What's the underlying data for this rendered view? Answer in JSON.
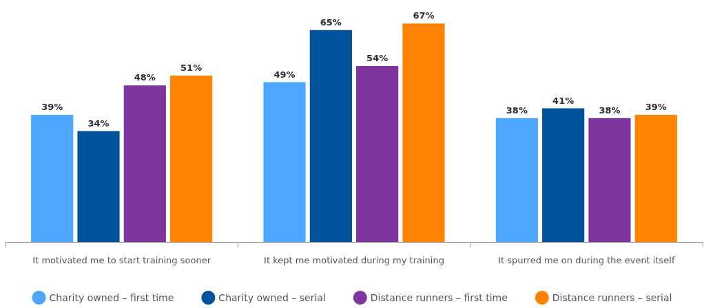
{
  "chart_data": {
    "type": "bar",
    "categories": [
      "It motivated me to start training sooner",
      "It kept me motivated during my training",
      "It spurred me on during the event itself"
    ],
    "series": [
      {
        "name": "Charity owned – first time",
        "color": "#4da6ff",
        "values": [
          39,
          49,
          38
        ],
        "value_labels": [
          "39%",
          "49%",
          "38%"
        ]
      },
      {
        "name": "Charity owned – serial",
        "color": "#00529b",
        "values": [
          34,
          65,
          41
        ],
        "value_labels": [
          "34%",
          "65%",
          "41%"
        ]
      },
      {
        "name": "Distance runners – first time",
        "color": "#7f35a0",
        "values": [
          48,
          54,
          38
        ],
        "value_labels": [
          "48%",
          "54%",
          "38%"
        ]
      },
      {
        "name": "Distance runners – serial",
        "color": "#ff8200",
        "values": [
          51,
          67,
          39
        ],
        "value_labels": [
          "51%",
          "67%",
          "39%"
        ]
      }
    ],
    "legend": "bottom",
    "grid": false,
    "tick_labels": "x"
  }
}
